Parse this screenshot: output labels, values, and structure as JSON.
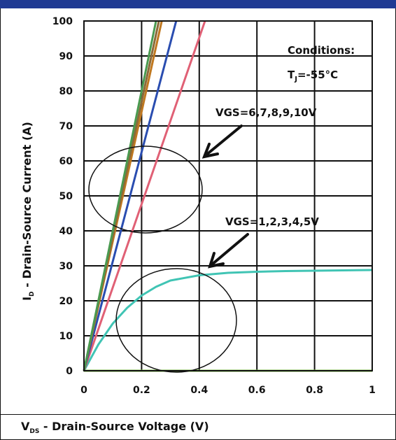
{
  "chart_data": {
    "type": "line",
    "title": "",
    "xlabel": {
      "main": "V",
      "sub": "DS",
      "rest": " - Drain-Source Voltage (V)"
    },
    "ylabel": {
      "main": "I",
      "sub": "D",
      "rest": " - Drain-Source Current (A)"
    },
    "xlim": [
      0,
      1
    ],
    "ylim": [
      0,
      100
    ],
    "xticks": [
      0,
      0.2,
      0.4,
      0.6,
      0.8,
      1
    ],
    "xtick_labels": [
      "0",
      "0.2",
      "0.4",
      "0.6",
      "0.8",
      "1"
    ],
    "yticks": [
      0,
      10,
      20,
      30,
      40,
      50,
      60,
      70,
      80,
      90,
      100
    ],
    "ytick_labels": [
      "0",
      "10",
      "20",
      "30",
      "40",
      "50",
      "60",
      "70",
      "80",
      "90",
      "100"
    ],
    "grid": true,
    "series": [
      {
        "color": "#7bc043",
        "x": [
          0,
          1
        ],
        "y": [
          0,
          0
        ]
      },
      {
        "color": "#40c4b4",
        "x": [
          0,
          0.05,
          0.1,
          0.15,
          0.2,
          0.25,
          0.3,
          0.4,
          0.5,
          0.6,
          0.7,
          0.8,
          1.0
        ],
        "y": [
          0,
          7.5,
          13.5,
          18,
          21.5,
          24,
          25.8,
          27.3,
          28,
          28.3,
          28.5,
          28.6,
          28.8
        ]
      },
      {
        "color": "#e06075",
        "x": [
          0,
          0.42
        ],
        "y": [
          0,
          100
        ]
      },
      {
        "color": "#2a4db0",
        "x": [
          0,
          0.32
        ],
        "y": [
          0,
          100
        ]
      },
      {
        "color": "#c07820",
        "x": [
          0,
          0.27
        ],
        "y": [
          0,
          100
        ]
      },
      {
        "color": "#8a6a3a",
        "x": [
          0,
          0.26
        ],
        "y": [
          0,
          100
        ]
      },
      {
        "color": "#4a9a50",
        "x": [
          0,
          0.25
        ],
        "y": [
          0,
          100
        ]
      }
    ],
    "annotations": {
      "conditions_title": "Conditions:",
      "conditions_t": "T",
      "conditions_sub": "J",
      "conditions_val": "=-55°C",
      "vgs_high": "VGS=6,7,8,9,10V",
      "vgs_low": "VGS=1,2,3,4,5V"
    }
  }
}
